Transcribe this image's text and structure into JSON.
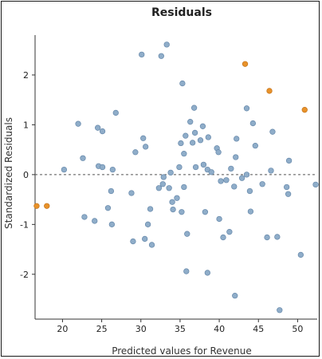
{
  "chart_data": {
    "type": "scatter",
    "title": "Residuals",
    "xlabel": "Predicted values for Revenue",
    "ylabel": "Standardized Residuals",
    "xlim": [
      16.5,
      52.5
    ],
    "ylim": [
      -2.9,
      2.8
    ],
    "x_ticks": [
      20,
      25,
      30,
      35,
      40,
      45,
      50
    ],
    "y_ticks": [
      -2,
      -1,
      0,
      1,
      2
    ],
    "x_tick_labels": [
      "20",
      "25",
      "30",
      "35",
      "40",
      "45",
      "50"
    ],
    "y_tick_labels": [
      "-2",
      "-1",
      "0",
      "1",
      "2"
    ],
    "reference_line": {
      "y": 0,
      "style": "dashed"
    },
    "grid": false,
    "colors": {
      "normal_point": "#8fadc9",
      "normal_stroke": "#6688aa",
      "highlight_point": "#e8922a",
      "highlight_stroke": "#c4741c",
      "axis": "#333333",
      "reference_line": "#555555"
    },
    "series": [
      {
        "role": "normal",
        "points": [
          [
            20.2,
            0.1
          ],
          [
            22.0,
            1.02
          ],
          [
            22.6,
            0.33
          ],
          [
            22.8,
            -0.85
          ],
          [
            24.1,
            -0.93
          ],
          [
            24.5,
            0.94
          ],
          [
            24.6,
            0.17
          ],
          [
            25.1,
            0.87
          ],
          [
            25.1,
            0.15
          ],
          [
            25.8,
            -0.67
          ],
          [
            26.2,
            -0.33
          ],
          [
            26.3,
            -1.0
          ],
          [
            26.4,
            0.1
          ],
          [
            26.8,
            1.24
          ],
          [
            28.8,
            -0.37
          ],
          [
            29.0,
            -1.34
          ],
          [
            29.3,
            0.45
          ],
          [
            30.1,
            2.41
          ],
          [
            30.3,
            0.73
          ],
          [
            30.6,
            0.56
          ],
          [
            30.5,
            -1.29
          ],
          [
            30.9,
            -1.0
          ],
          [
            31.2,
            -0.69
          ],
          [
            31.4,
            -1.41
          ],
          [
            32.3,
            -0.27
          ],
          [
            32.6,
            2.38
          ],
          [
            32.8,
            -0.19
          ],
          [
            32.9,
            -0.05
          ],
          [
            33.3,
            2.61
          ],
          [
            33.6,
            -0.27
          ],
          [
            33.8,
            0.04
          ],
          [
            34.0,
            -0.55
          ],
          [
            34.1,
            -0.7
          ],
          [
            34.6,
            -0.47
          ],
          [
            34.9,
            0.15
          ],
          [
            35.1,
            0.63
          ],
          [
            35.2,
            -0.75
          ],
          [
            35.3,
            1.83
          ],
          [
            35.5,
            0.42
          ],
          [
            35.5,
            -0.25
          ],
          [
            35.7,
            0.78
          ],
          [
            35.9,
            -1.19
          ],
          [
            35.8,
            -1.94
          ],
          [
            36.3,
            1.06
          ],
          [
            36.6,
            0.64
          ],
          [
            36.8,
            1.34
          ],
          [
            36.9,
            0.84
          ],
          [
            37.0,
            0.15
          ],
          [
            37.6,
            0.69
          ],
          [
            37.9,
            0.97
          ],
          [
            38.0,
            0.2
          ],
          [
            38.2,
            -0.75
          ],
          [
            38.5,
            0.1
          ],
          [
            38.6,
            0.75
          ],
          [
            38.5,
            -1.97
          ],
          [
            39.0,
            0.05
          ],
          [
            39.7,
            0.53
          ],
          [
            39.9,
            0.45
          ],
          [
            40.0,
            -0.89
          ],
          [
            40.2,
            -0.13
          ],
          [
            40.5,
            -1.26
          ],
          [
            40.9,
            -0.11
          ],
          [
            41.3,
            -1.15
          ],
          [
            41.5,
            0.12
          ],
          [
            41.9,
            -0.24
          ],
          [
            42.1,
            0.35
          ],
          [
            42.2,
            0.72
          ],
          [
            42.0,
            -2.43
          ],
          [
            42.9,
            -0.07
          ],
          [
            43.5,
            1.33
          ],
          [
            43.5,
            0.0
          ],
          [
            43.9,
            -0.33
          ],
          [
            44.0,
            -0.74
          ],
          [
            44.3,
            1.03
          ],
          [
            44.6,
            0.58
          ],
          [
            45.5,
            -0.19
          ],
          [
            46.1,
            -1.26
          ],
          [
            46.6,
            0.08
          ],
          [
            46.8,
            0.86
          ],
          [
            47.4,
            -1.25
          ],
          [
            47.7,
            -2.72
          ],
          [
            48.6,
            -0.25
          ],
          [
            48.8,
            -0.39
          ],
          [
            48.9,
            0.28
          ],
          [
            50.4,
            -1.61
          ],
          [
            52.3,
            -0.2
          ]
        ]
      },
      {
        "role": "highlight",
        "points": [
          [
            16.7,
            -0.63
          ],
          [
            18.0,
            -0.63
          ],
          [
            43.3,
            2.22
          ],
          [
            46.4,
            1.68
          ],
          [
            50.9,
            1.3
          ]
        ]
      }
    ]
  }
}
